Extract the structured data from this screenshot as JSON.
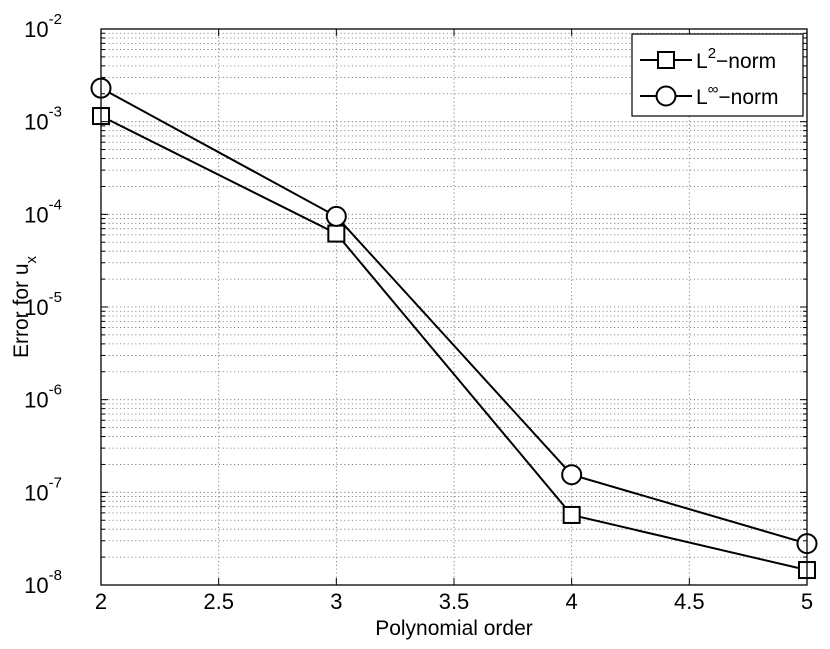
{
  "chart_data": {
    "type": "line",
    "title": "",
    "xlabel": "Polynomial order",
    "ylabel_main": "Error for u",
    "ylabel_sub": "x",
    "x": [
      2,
      3,
      4,
      5
    ],
    "xlim": [
      2,
      5
    ],
    "ylim": [
      1e-08,
      0.01
    ],
    "yscale": "log",
    "grid": true,
    "legend_position": "top-right",
    "x_ticks": [
      "2",
      "2.5",
      "3",
      "3.5",
      "4",
      "4.5",
      "5"
    ],
    "y_ticks": [
      {
        "base": "10",
        "exp": "-8"
      },
      {
        "base": "10",
        "exp": "-7"
      },
      {
        "base": "10",
        "exp": "-6"
      },
      {
        "base": "10",
        "exp": "-5"
      },
      {
        "base": "10",
        "exp": "-4"
      },
      {
        "base": "10",
        "exp": "-3"
      },
      {
        "base": "10",
        "exp": "-2"
      }
    ],
    "series": [
      {
        "name_base": "L",
        "name_sup": "2",
        "name_rest": "−norm",
        "marker": "square",
        "values": [
          0.00115,
          6.2e-05,
          5.7e-08,
          1.45e-08
        ]
      },
      {
        "name_base": "L",
        "name_sup": "∞",
        "name_rest": "−norm",
        "marker": "circle",
        "values": [
          0.0023,
          9.5e-05,
          1.55e-07,
          2.8e-08
        ]
      }
    ]
  }
}
